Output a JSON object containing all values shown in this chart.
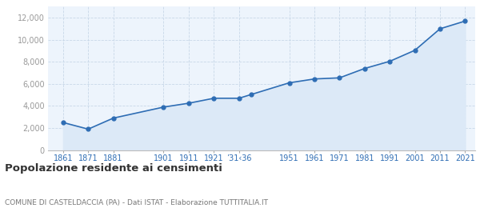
{
  "years": [
    1861,
    1871,
    1881,
    1901,
    1911,
    1921,
    1931,
    1936,
    1951,
    1961,
    1971,
    1981,
    1991,
    2001,
    2011,
    2021
  ],
  "population": [
    2500,
    1900,
    2900,
    3900,
    4250,
    4700,
    4700,
    5050,
    6100,
    6450,
    6550,
    7400,
    8050,
    9050,
    11000,
    11700
  ],
  "line_color": "#2e6db4",
  "fill_color": "#dce9f7",
  "marker_color": "#2e6db4",
  "bg_color": "#edf4fc",
  "grid_color": "#c8d8e8",
  "title": "Popolazione residente ai censimenti",
  "subtitle": "COMUNE DI CASTELDACCIA (PA) - Dati ISTAT - Elaborazione TUTTITALIA.IT",
  "title_color": "#333333",
  "subtitle_color": "#777777",
  "tick_label_color": "#2e6db4",
  "ytick_label_color": "#999999",
  "ylim": [
    0,
    13000
  ],
  "yticks": [
    0,
    2000,
    4000,
    6000,
    8000,
    10000,
    12000
  ],
  "x_tick_positions": [
    1861,
    1871,
    1881,
    1901,
    1911,
    1921,
    1931,
    1936,
    1951,
    1961,
    1971,
    1981,
    1991,
    2001,
    2011,
    2021
  ],
  "x_tick_labels": [
    "1861",
    "1871",
    "1881",
    "1901",
    "1911",
    "1921",
    "’31‹36",
    "",
    "1951",
    "1961",
    "1971",
    "1981",
    "1991",
    "2001",
    "2011",
    "2021"
  ],
  "xlim_left": 1855,
  "xlim_right": 2025
}
